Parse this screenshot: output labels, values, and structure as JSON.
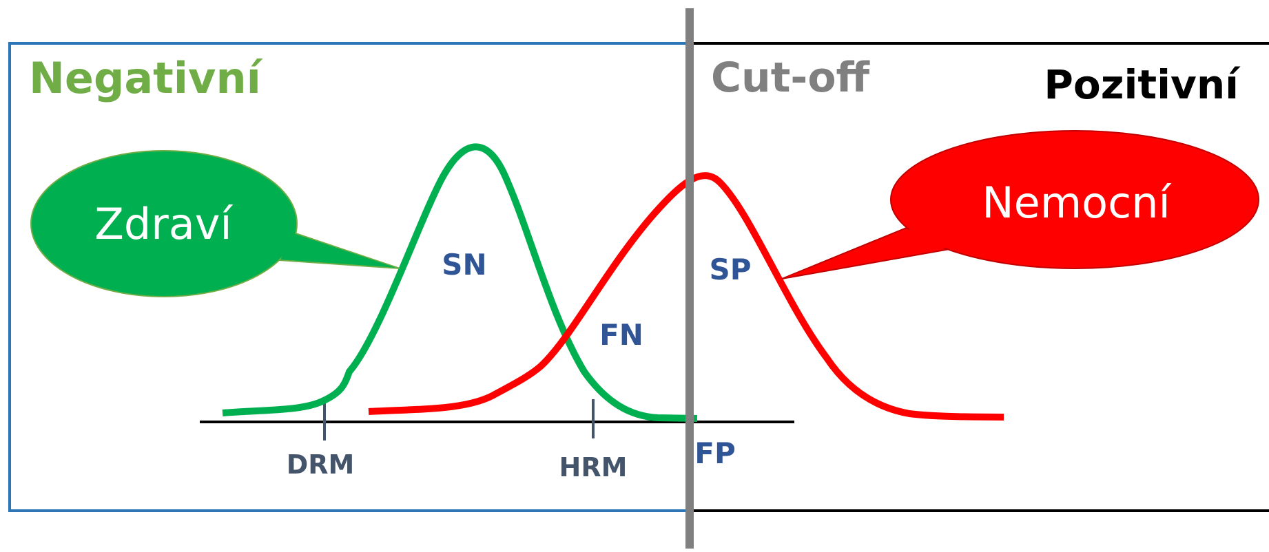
{
  "regions": {
    "negative_label": "Negativní",
    "cutoff_label": "Cut-off",
    "positive_label": "Pozitivní"
  },
  "callouts": {
    "healthy": "Zdraví",
    "sick": "Nemocní"
  },
  "areas": {
    "sn": "SN",
    "sp": "SP",
    "fn": "FN",
    "fp": "FP"
  },
  "markers": {
    "lower": "DRM",
    "upper": "HRM"
  },
  "colors": {
    "negative": "#70ad47",
    "cutoff": "#808080",
    "positive": "#000000",
    "healthy_curve": "#00b050",
    "sick_curve": "#ff0000",
    "area_labels": "#2f5597",
    "marker_labels": "#44546a",
    "negative_frame": "#2e75b6"
  }
}
